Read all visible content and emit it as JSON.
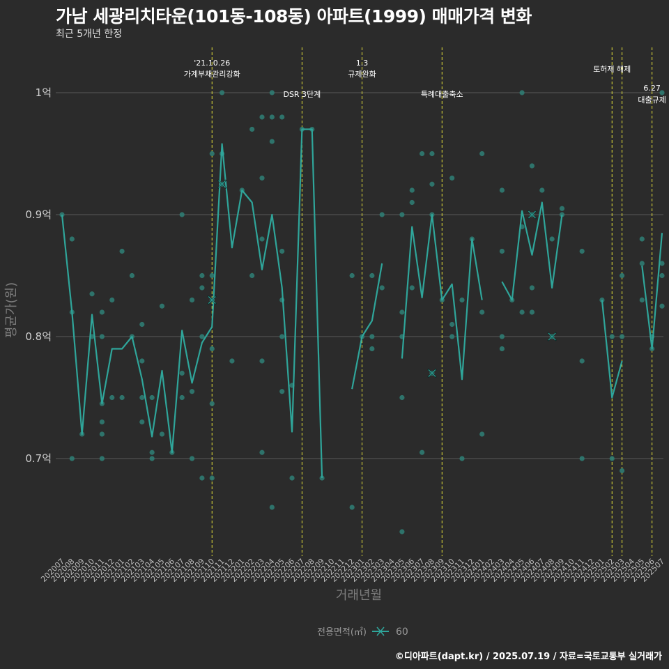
{
  "title": "가남 세광리치타운(101동-108동) 아파트(1999) 매매가격 변화",
  "subtitle": "최근 5개년 한정",
  "caption": "©디아파트(dapt.kr) / 2025.07.19 / 자료=국토교통부 실거래가",
  "colors": {
    "background": "#2b2b2b",
    "line": "#2fa59a",
    "points": "#2f7b72",
    "event_line": "#e8e33a",
    "grid": "#5a5a5a"
  },
  "chart_data": {
    "type": "line",
    "xlabel": "거래년월",
    "ylabel": "평균가(원)",
    "ylim": [
      0.62,
      1.04
    ],
    "y_unit": "억",
    "y_ticks": [
      {
        "value": 0.7,
        "label": "0.7억"
      },
      {
        "value": 0.8,
        "label": "0.8억"
      },
      {
        "value": 0.9,
        "label": "0.9억"
      },
      {
        "value": 1.0,
        "label": "1억"
      }
    ],
    "grid": true,
    "legend": {
      "title": "전용면적(㎡)",
      "position": "bottom",
      "entries": [
        "60"
      ]
    },
    "categories": [
      "202007",
      "202008",
      "202009",
      "202010",
      "202011",
      "202012",
      "202101",
      "202102",
      "202103",
      "202104",
      "202105",
      "202106",
      "202107",
      "202108",
      "202109",
      "202110",
      "202111",
      "202112",
      "202201",
      "202202",
      "202203",
      "202204",
      "202205",
      "202206",
      "202207",
      "202208",
      "202209",
      "202210",
      "202211",
      "202212",
      "202301",
      "202302",
      "202303",
      "202304",
      "202305",
      "202306",
      "202307",
      "202308",
      "202309",
      "202310",
      "202311",
      "202312",
      "202401",
      "202402",
      "202403",
      "202404",
      "202405",
      "202406",
      "202407",
      "202408",
      "202409",
      "202410",
      "202411",
      "202412",
      "202501",
      "202502",
      "202503",
      "202504",
      "202505",
      "202506",
      "202507"
    ],
    "series": [
      {
        "name": "60",
        "values": [
          0.9,
          0.82,
          0.72,
          0.818,
          0.745,
          0.79,
          0.79,
          0.8,
          0.765,
          0.718,
          0.772,
          0.705,
          0.805,
          0.762,
          0.795,
          0.808,
          0.958,
          0.873,
          0.92,
          0.91,
          0.855,
          0.9,
          0.84,
          0.722,
          0.97,
          0.97,
          0.684,
          null,
          null,
          0.757,
          0.8,
          0.813,
          0.86,
          null,
          0.782,
          0.89,
          0.832,
          0.9,
          0.83,
          0.843,
          0.765,
          0.88,
          0.83,
          null,
          0.845,
          0.83,
          0.903,
          0.867,
          0.91,
          0.84,
          0.9,
          null,
          null,
          null,
          0.83,
          0.75,
          0.78,
          null,
          0.858,
          0.79,
          0.885
        ]
      }
    ],
    "transactions": [
      [
        0,
        0.9
      ],
      [
        1,
        0.82
      ],
      [
        1,
        0.7
      ],
      [
        1,
        0.88
      ],
      [
        2,
        0.72
      ],
      [
        3,
        0.835
      ],
      [
        3,
        0.8
      ],
      [
        4,
        0.745
      ],
      [
        4,
        0.72
      ],
      [
        4,
        0.73
      ],
      [
        4,
        0.7
      ],
      [
        4,
        0.8
      ],
      [
        4,
        0.82
      ],
      [
        5,
        0.83
      ],
      [
        5,
        0.75
      ],
      [
        6,
        0.87
      ],
      [
        6,
        0.75
      ],
      [
        7,
        0.85
      ],
      [
        7,
        0.8
      ],
      [
        8,
        0.81
      ],
      [
        8,
        0.78
      ],
      [
        8,
        0.75
      ],
      [
        8,
        0.73
      ],
      [
        9,
        0.75
      ],
      [
        9,
        0.7
      ],
      [
        9,
        0.705
      ],
      [
        10,
        0.825
      ],
      [
        10,
        0.72
      ],
      [
        11,
        0.705
      ],
      [
        12,
        0.9
      ],
      [
        12,
        0.77
      ],
      [
        12,
        0.75
      ],
      [
        13,
        0.83
      ],
      [
        13,
        0.755
      ],
      [
        13,
        0.7
      ],
      [
        14,
        0.8
      ],
      [
        14,
        0.85
      ],
      [
        14,
        0.84
      ],
      [
        14,
        0.684
      ],
      [
        15,
        0.95
      ],
      [
        15,
        0.85
      ],
      [
        15,
        0.79
      ],
      [
        15,
        0.745
      ],
      [
        15,
        0.684
      ],
      [
        15,
        0.83
      ],
      [
        16,
        1.0
      ],
      [
        16,
        0.95
      ],
      [
        16,
        0.925
      ],
      [
        17,
        0.78
      ],
      [
        18,
        0.92
      ],
      [
        19,
        0.97
      ],
      [
        19,
        0.85
      ],
      [
        20,
        0.98
      ],
      [
        20,
        0.93
      ],
      [
        20,
        0.88
      ],
      [
        20,
        0.78
      ],
      [
        20,
        0.705
      ],
      [
        21,
        1.0
      ],
      [
        21,
        0.98
      ],
      [
        21,
        0.96
      ],
      [
        21,
        0.66
      ],
      [
        22,
        0.98
      ],
      [
        22,
        0.87
      ],
      [
        22,
        0.83
      ],
      [
        22,
        0.8
      ],
      [
        22,
        0.755
      ],
      [
        23,
        0.76
      ],
      [
        23,
        0.684
      ],
      [
        24,
        0.97
      ],
      [
        25,
        0.97
      ],
      [
        26,
        0.684
      ],
      [
        29,
        0.85
      ],
      [
        29,
        0.66
      ],
      [
        30,
        0.8
      ],
      [
        31,
        0.85
      ],
      [
        31,
        0.8
      ],
      [
        31,
        0.79
      ],
      [
        32,
        0.9
      ],
      [
        32,
        0.84
      ],
      [
        34,
        0.9
      ],
      [
        34,
        0.82
      ],
      [
        34,
        0.8
      ],
      [
        34,
        0.75
      ],
      [
        34,
        0.64
      ],
      [
        35,
        0.92
      ],
      [
        35,
        0.91
      ],
      [
        35,
        0.84
      ],
      [
        36,
        0.95
      ],
      [
        36,
        0.705
      ],
      [
        37,
        0.95
      ],
      [
        37,
        0.925
      ],
      [
        37,
        0.9
      ],
      [
        37,
        0.77
      ],
      [
        38,
        0.83
      ],
      [
        39,
        0.93
      ],
      [
        39,
        0.81
      ],
      [
        39,
        0.8
      ],
      [
        40,
        0.83
      ],
      [
        40,
        0.7
      ],
      [
        41,
        0.88
      ],
      [
        42,
        0.95
      ],
      [
        42,
        0.82
      ],
      [
        42,
        0.72
      ],
      [
        44,
        0.92
      ],
      [
        44,
        0.87
      ],
      [
        44,
        0.8
      ],
      [
        44,
        0.79
      ],
      [
        45,
        0.83
      ],
      [
        46,
        1.0
      ],
      [
        46,
        0.89
      ],
      [
        46,
        0.82
      ],
      [
        47,
        0.94
      ],
      [
        47,
        0.9
      ],
      [
        47,
        0.84
      ],
      [
        47,
        0.82
      ],
      [
        48,
        0.92
      ],
      [
        49,
        0.88
      ],
      [
        49,
        0.8
      ],
      [
        50,
        0.905
      ],
      [
        50,
        0.9
      ],
      [
        52,
        0.87
      ],
      [
        52,
        0.78
      ],
      [
        52,
        0.7
      ],
      [
        54,
        0.83
      ],
      [
        55,
        0.8
      ],
      [
        55,
        0.7
      ],
      [
        56,
        0.85
      ],
      [
        56,
        0.8
      ],
      [
        56,
        0.69
      ],
      [
        58,
        0.88
      ],
      [
        58,
        0.86
      ],
      [
        58,
        0.83
      ],
      [
        59,
        0.8
      ],
      [
        59,
        0.79
      ],
      [
        60,
        1.0
      ],
      [
        60,
        0.86
      ],
      [
        60,
        0.85
      ],
      [
        60,
        0.825
      ]
    ],
    "highlights": [
      [
        15,
        0.83
      ],
      [
        16,
        0.925
      ],
      [
        37,
        0.77
      ],
      [
        47,
        0.9
      ],
      [
        49,
        0.8
      ]
    ],
    "events": [
      {
        "index": 15,
        "lines": [
          "'21.10.26",
          "가계부채관리강화"
        ],
        "level": 0
      },
      {
        "index": 24,
        "lines": [
          "DSR 3단계"
        ],
        "level": 2
      },
      {
        "index": 30,
        "lines": [
          "1.3",
          "규제완화"
        ],
        "level": 0
      },
      {
        "index": 38,
        "lines": [
          "특례대출축소"
        ],
        "level": 2
      },
      {
        "index": 55,
        "lines": [
          "토허제 해제"
        ],
        "level": 1
      },
      {
        "index": 56,
        "lines": [],
        "level": 1
      },
      {
        "index": 59,
        "lines": [
          "6.27",
          "대출규제"
        ],
        "level": 3
      }
    ]
  }
}
